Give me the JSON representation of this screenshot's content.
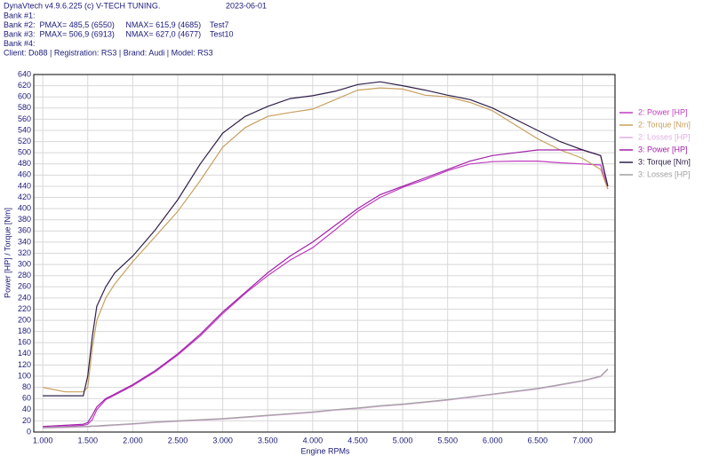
{
  "chart_data": {
    "type": "line",
    "header": {
      "app": "DynaVtech v4.9.6.225 (c) V-TECH TUNING.",
      "date": "2023-06-01",
      "lines": [
        "Bank #1:",
        "Bank #2:  PMAX= 485,5 (6550)     NMAX= 615,9 (4685)    Test7",
        "Bank #3:  PMAX= 506,9 (6913)     NMAX= 627,0 (4677)    Test10",
        "Bank #4:",
        "Client: Do88 | Registration: RS3 | Brand: Audi | Model: RS3"
      ]
    },
    "xlabel": "Engine RPMs",
    "ylabel": "Power [HP] / Torque [Nm]",
    "x": [
      1000,
      1250,
      1450,
      1500,
      1550,
      1600,
      1700,
      1800,
      2000,
      2250,
      2500,
      2750,
      3000,
      3250,
      3500,
      3750,
      4000,
      4250,
      4500,
      4750,
      5000,
      5250,
      5500,
      5750,
      6000,
      6250,
      6500,
      6750,
      7000,
      7200,
      7280
    ],
    "series": [
      {
        "name": "2: Power [HP]",
        "color": "#c03cc0",
        "values": [
          8,
          10,
          12,
          14,
          22,
          40,
          58,
          66,
          83,
          108,
          138,
          172,
          212,
          248,
          280,
          308,
          330,
          362,
          395,
          420,
          438,
          452,
          468,
          480,
          484,
          485,
          485,
          482,
          480,
          478,
          435
        ]
      },
      {
        "name": "2: Torque [Nm]",
        "color": "#c8a060",
        "values": [
          80,
          72,
          72,
          80,
          150,
          200,
          240,
          265,
          305,
          350,
          395,
          450,
          510,
          545,
          565,
          572,
          578,
          595,
          612,
          616,
          614,
          603,
          600,
          590,
          575,
          550,
          525,
          505,
          490,
          470,
          435
        ]
      },
      {
        "name": "2: Losses [HP]",
        "color": "#e0b0e0",
        "values": [
          7,
          8,
          9,
          9,
          10,
          10,
          11,
          12,
          14,
          17,
          19,
          21,
          23,
          26,
          29,
          32,
          35,
          39,
          42,
          46,
          49,
          53,
          57,
          62,
          67,
          72,
          77,
          84,
          91,
          99,
          112
        ]
      },
      {
        "name": "3: Power [HP]",
        "color": "#a020a8",
        "values": [
          10,
          12,
          14,
          17,
          30,
          45,
          60,
          68,
          85,
          110,
          140,
          175,
          215,
          250,
          285,
          315,
          340,
          370,
          400,
          425,
          440,
          455,
          470,
          485,
          495,
          500,
          505,
          505,
          505,
          495,
          440
        ]
      },
      {
        "name": "3: Torque [Nm]",
        "color": "#302048",
        "values": [
          65,
          65,
          65,
          100,
          170,
          225,
          260,
          285,
          315,
          362,
          416,
          480,
          535,
          565,
          583,
          597,
          602,
          610,
          622,
          627,
          620,
          612,
          603,
          595,
          580,
          560,
          540,
          520,
          505,
          495,
          440
        ]
      },
      {
        "name": "3: Losses [HP]",
        "color": "#a0a0a0",
        "values": [
          8,
          9,
          10,
          10,
          11,
          11,
          12,
          13,
          15,
          18,
          20,
          22,
          24,
          27,
          30,
          33,
          36,
          40,
          43,
          47,
          50,
          54,
          58,
          63,
          68,
          73,
          78,
          85,
          92,
          100,
          113
        ]
      }
    ],
    "xlim": [
      900,
      7360
    ],
    "ylim": [
      0,
      640
    ],
    "xticks": [
      {
        "value": 1000,
        "label": "1.000"
      },
      {
        "value": 1500,
        "label": "1.500"
      },
      {
        "value": 2000,
        "label": "2.000"
      },
      {
        "value": 2500,
        "label": "2.500"
      },
      {
        "value": 3000,
        "label": "3.000"
      },
      {
        "value": 3500,
        "label": "3.500"
      },
      {
        "value": 4000,
        "label": "4.000"
      },
      {
        "value": 4500,
        "label": "4.500"
      },
      {
        "value": 5000,
        "label": "5.000"
      },
      {
        "value": 5500,
        "label": "5.500"
      },
      {
        "value": 6000,
        "label": "6.000"
      },
      {
        "value": 6500,
        "label": "6.500"
      },
      {
        "value": 7000,
        "label": "7.000"
      }
    ],
    "yticks": [
      0,
      20,
      40,
      60,
      80,
      100,
      120,
      140,
      160,
      180,
      200,
      220,
      240,
      260,
      280,
      300,
      320,
      340,
      360,
      380,
      400,
      420,
      440,
      460,
      480,
      500,
      520,
      540,
      560,
      580,
      600,
      620,
      640
    ],
    "grid": true,
    "legend": "right"
  }
}
